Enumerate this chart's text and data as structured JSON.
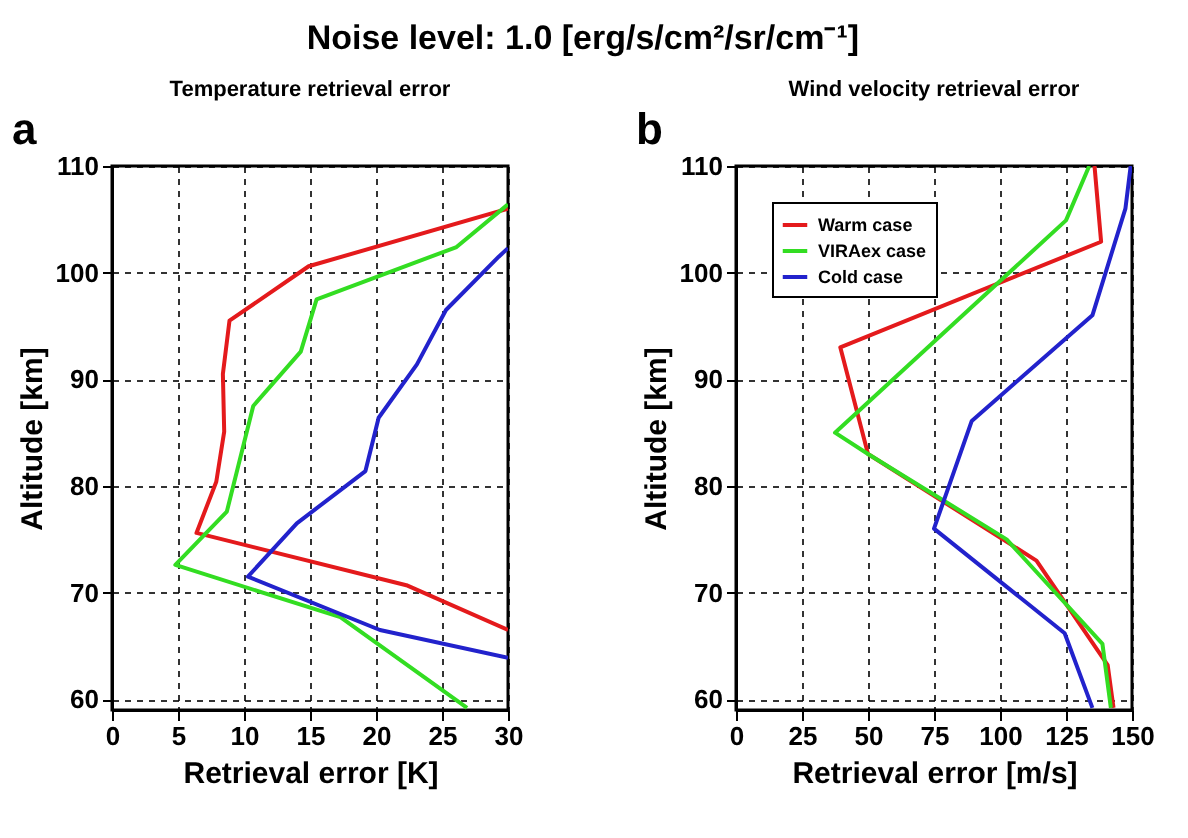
{
  "chart_data": [
    {
      "type": "line",
      "title": "Temperature retrieval error",
      "xlabel": "Retrieval error [K]",
      "ylabel": "Altitude [km]",
      "annotations": [
        "Noise level: 1.0 [erg/s/cm²/sr/cm⁻¹]",
        "a"
      ],
      "xlim": [
        0,
        30
      ],
      "xticks": [
        0,
        5,
        10,
        15,
        20,
        25,
        30
      ],
      "ylim": [
        59,
        110
      ],
      "yticks": [
        60,
        70,
        80,
        90,
        100,
        110
      ],
      "grid": true,
      "series": [
        {
          "color": "#e41a1c",
          "x": [
            30,
            14.9,
            8.9,
            8.4,
            8.5,
            7.9,
            6.4,
            22.3,
            30
          ],
          "values": [
            106.0,
            100.6,
            95.5,
            90.5,
            85.1,
            80.4,
            75.6,
            70.7,
            66.5
          ]
        },
        {
          "color": "#33dd22",
          "x": [
            30,
            26.1,
            15.5,
            14.3,
            10.7,
            8.7,
            4.8,
            17.3,
            26.9
          ],
          "values": [
            106.4,
            102.4,
            97.5,
            92.6,
            87.5,
            77.6,
            72.6,
            67.7,
            59.2
          ]
        },
        {
          "color": "#2222cc",
          "x": [
            30,
            29.3,
            25.3,
            23.1,
            20.2,
            19.2,
            14.0,
            10.3,
            20.3,
            30
          ],
          "values": [
            102.3,
            101.5,
            96.5,
            91.4,
            86.4,
            81.4,
            76.5,
            71.5,
            66.5,
            63.9
          ]
        }
      ]
    },
    {
      "type": "line",
      "title": "Wind velocity retrieval error",
      "xlabel": "Retrieval error [m/s]",
      "ylabel": "Altitude [km]",
      "annotations": [
        "b"
      ],
      "xlim": [
        0,
        150
      ],
      "xticks": [
        0,
        25,
        50,
        75,
        100,
        125,
        150
      ],
      "ylim": [
        59,
        110
      ],
      "yticks": [
        60,
        70,
        80,
        90,
        100,
        110
      ],
      "grid": true,
      "legend": "top left",
      "series": [
        {
          "name": "Warm case",
          "color": "#e41a1c",
          "x": [
            135.8,
            138.3,
            39.5,
            50,
            113.8,
            140.8,
            143
          ],
          "values": [
            110,
            102.9,
            93.0,
            83.0,
            73.0,
            63.2,
            59.2
          ]
        },
        {
          "name": "VIRAex case",
          "color": "#33dd22",
          "x": [
            133.8,
            125,
            37.5,
            50,
            102.5,
            138.8,
            142
          ],
          "values": [
            110,
            104.9,
            85.0,
            83.0,
            75.0,
            65.2,
            59.2
          ]
        },
        {
          "name": "Cold case",
          "color": "#2222cc",
          "x": [
            149.5,
            147.5,
            135,
            89.3,
            75,
            124.5,
            135
          ],
          "values": [
            110,
            106,
            96,
            86.1,
            76,
            66.2,
            59.2
          ]
        }
      ]
    }
  ]
}
